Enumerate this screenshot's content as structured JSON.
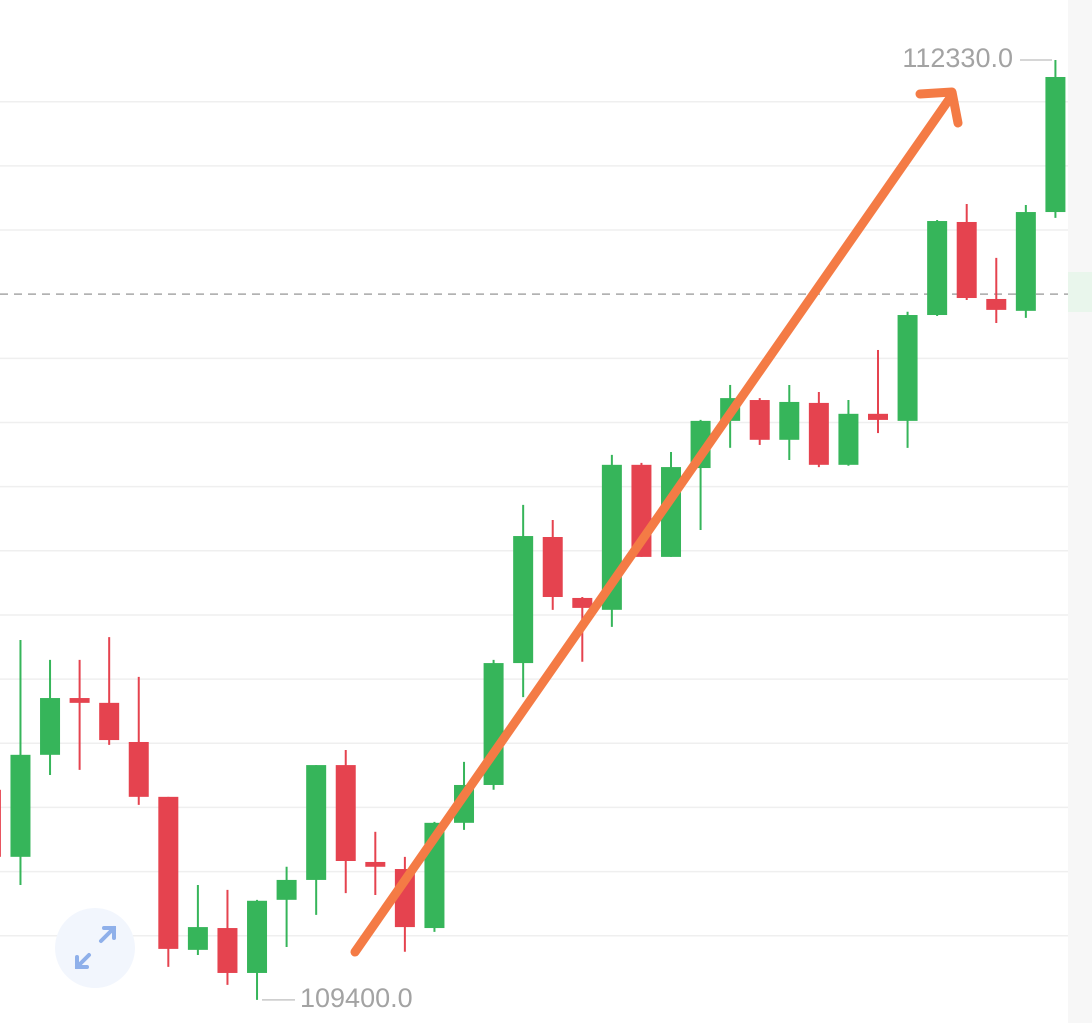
{
  "chart_data": {
    "type": "candlestick",
    "open": [
      110055,
      109846,
      110164,
      110341,
      110326,
      110204,
      110033,
      109556,
      109624,
      109484,
      109712,
      109774,
      110132,
      109830,
      109808,
      109624,
      109952,
      110070,
      110450,
      110843,
      110653,
      110616,
      111068,
      110781,
      111058,
      111205,
      111270,
      111146,
      111261,
      111068,
      111227,
      111205,
      111535,
      111825,
      111585,
      111548,
      111856
    ],
    "high": [
      110070,
      110522,
      110460,
      110460,
      110531,
      110407,
      110033,
      109758,
      109743,
      109712,
      109815,
      110132,
      110179,
      109924,
      109846,
      109955,
      110142,
      110460,
      110943,
      110896,
      110656,
      111099,
      111074,
      111108,
      111208,
      111317,
      111276,
      111317,
      111295,
      111270,
      111426,
      111545,
      111831,
      111881,
      111713,
      111878,
      112330
    ],
    "low": [
      109836,
      109758,
      110101,
      110117,
      110195,
      110008,
      109503,
      109540,
      109447,
      109400,
      109565,
      109665,
      109733,
      109727,
      109550,
      109612,
      109930,
      110055,
      110344,
      110616,
      110454,
      110563,
      110781,
      110781,
      110865,
      111121,
      111130,
      111083,
      111061,
      111065,
      111167,
      111121,
      111532,
      111582,
      111510,
      111526,
      111838
    ],
    "close": [
      109846,
      110164,
      110341,
      110326,
      110210,
      110033,
      109559,
      109627,
      109484,
      109709,
      109774,
      110132,
      109833,
      109815,
      109627,
      109952,
      110070,
      110450,
      110846,
      110656,
      110622,
      111068,
      110781,
      111061,
      111205,
      111276,
      111146,
      111264,
      111068,
      111227,
      111208,
      111535,
      111828,
      111588,
      111551,
      111856,
      112277
    ],
    "up_color": "#36b55a",
    "down_color": "#e5434f",
    "ylim": [
      109328,
      112517
    ],
    "gridlines": [
      109600,
      109800,
      110000,
      110200,
      110400,
      110600,
      110800,
      111000,
      111200,
      111400,
      111800,
      112000,
      112200
    ],
    "price_line": 111600,
    "annotations": [
      {
        "value": 112330,
        "label": "112330.0"
      },
      {
        "value": 109400,
        "label": "109400.0"
      }
    ]
  }
}
